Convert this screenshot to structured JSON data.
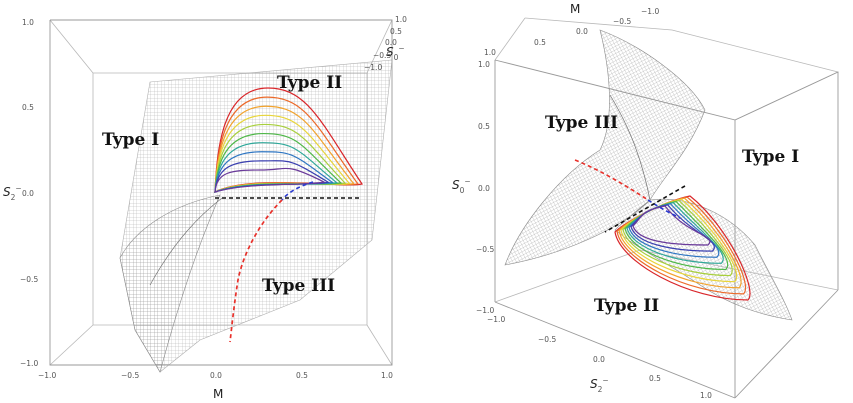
{
  "left_panel": {
    "region_labels": {
      "type1": "Type I",
      "type2": "Type II",
      "type3": "Type III"
    },
    "axis_labels": {
      "x": "M",
      "y": "S",
      "y_sub": "2",
      "y_sup": "−",
      "z": "S",
      "z_sub": "0",
      "z_sup": "−"
    },
    "x_ticks": [
      "−1.0",
      "−0.5",
      "0.0",
      "0.5",
      "1.0"
    ],
    "y_ticks": [
      "1.0",
      "0.5",
      "0.0",
      "−0.5",
      "−1.0"
    ],
    "z_ticks": [
      "1.0",
      "0.5",
      "0.0",
      "−0.5",
      "−1.0"
    ]
  },
  "right_panel": {
    "region_labels": {
      "type1": "Type I",
      "type2": "Type II",
      "type3": "Type III"
    },
    "axis_labels": {
      "m": "M",
      "s0": "S",
      "s0_sub": "0",
      "s0_sup": "−",
      "s2": "S",
      "s2_sub": "2",
      "s2_sup": "−"
    },
    "m_ticks": [
      "1.0",
      "0.5",
      "0.0",
      "−0.5",
      "−1.0"
    ],
    "s0_ticks": [
      "1.0",
      "0.5",
      "0.0",
      "−0.5",
      "−1.0"
    ],
    "s2_ticks": [
      "−1.0",
      "−0.5",
      "0.0",
      "0.5",
      "1.0"
    ]
  },
  "colors": {
    "contours": [
      "#d9262a",
      "#ec6a2a",
      "#f2a32d",
      "#e8d53a",
      "#a8cf3c",
      "#4fb848",
      "#2fa89a",
      "#2f76c2",
      "#3a3fb0",
      "#6a3a9a"
    ],
    "dashed_red": "#e8302a",
    "dashed_blue": "#2a3ad0",
    "dashed_black": "#111111",
    "surface": "#9a9a9a"
  }
}
